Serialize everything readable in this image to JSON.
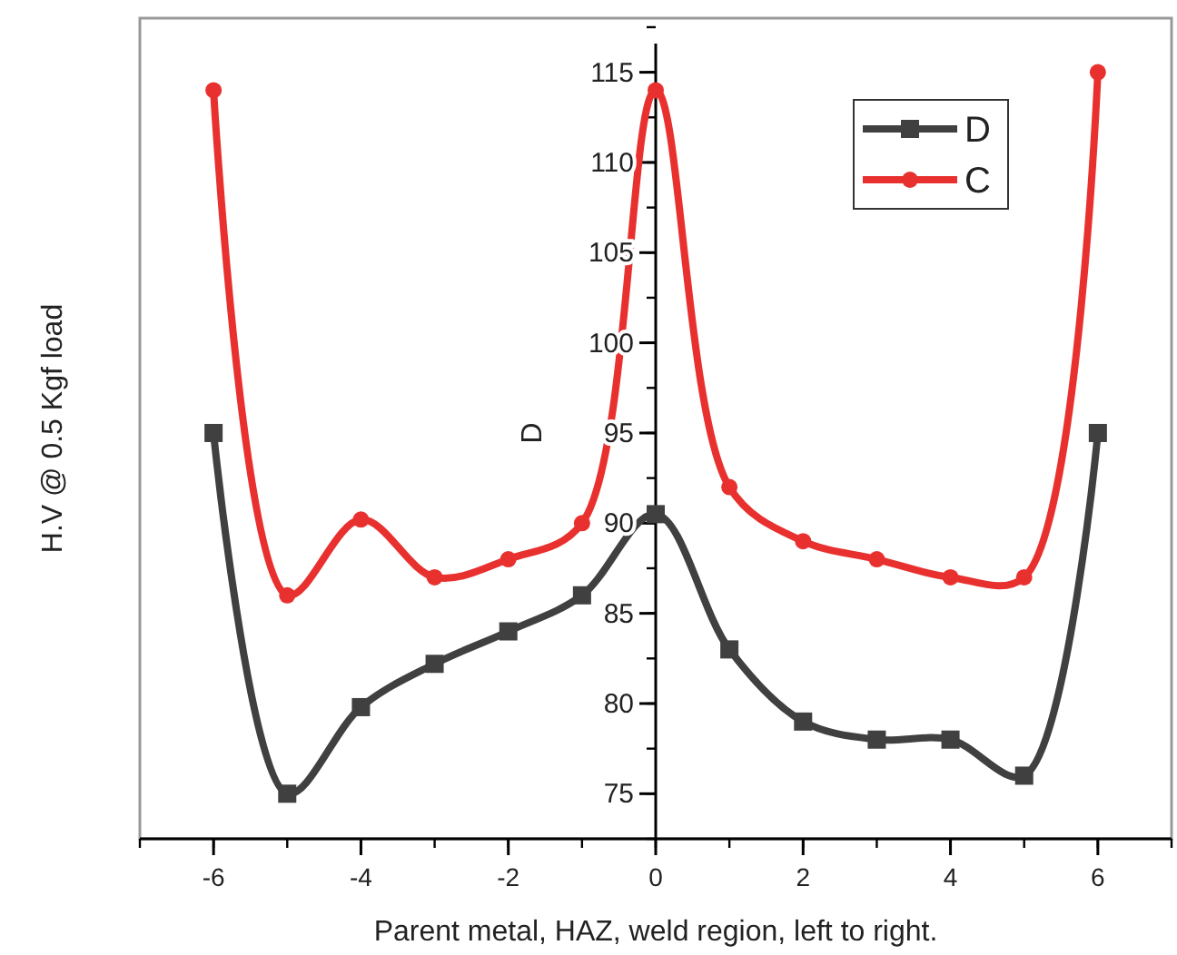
{
  "chart_data": {
    "type": "line",
    "xlabel": "Parent metal, HAZ, weld region, left to right.",
    "ylabel": "H.V @ 0.5 Kgf load",
    "annotations": [
      "D"
    ],
    "x": [
      -6,
      -5,
      -4,
      -3,
      -2,
      -1,
      0,
      1,
      2,
      3,
      4,
      5,
      6
    ],
    "series": [
      {
        "name": "D",
        "color": "#404040",
        "marker": "square",
        "values": [
          95,
          75,
          79.8,
          82.2,
          84,
          86,
          90.5,
          83,
          79,
          78,
          78,
          76,
          95
        ]
      },
      {
        "name": "C",
        "color": "#e8312f",
        "marker": "circle",
        "values": [
          114,
          86,
          90.2,
          87,
          88,
          90,
          114,
          92,
          89,
          88,
          87,
          87,
          115
        ]
      }
    ],
    "xlim": [
      -7,
      7
    ],
    "xticks": [
      -6,
      -4,
      -2,
      0,
      2,
      4,
      6
    ],
    "ylim": [
      72.5,
      118
    ],
    "yticks": [
      75,
      80,
      85,
      90,
      95,
      100,
      105,
      110,
      115
    ],
    "legend": "top right",
    "grid": false,
    "line_style": "solid"
  }
}
